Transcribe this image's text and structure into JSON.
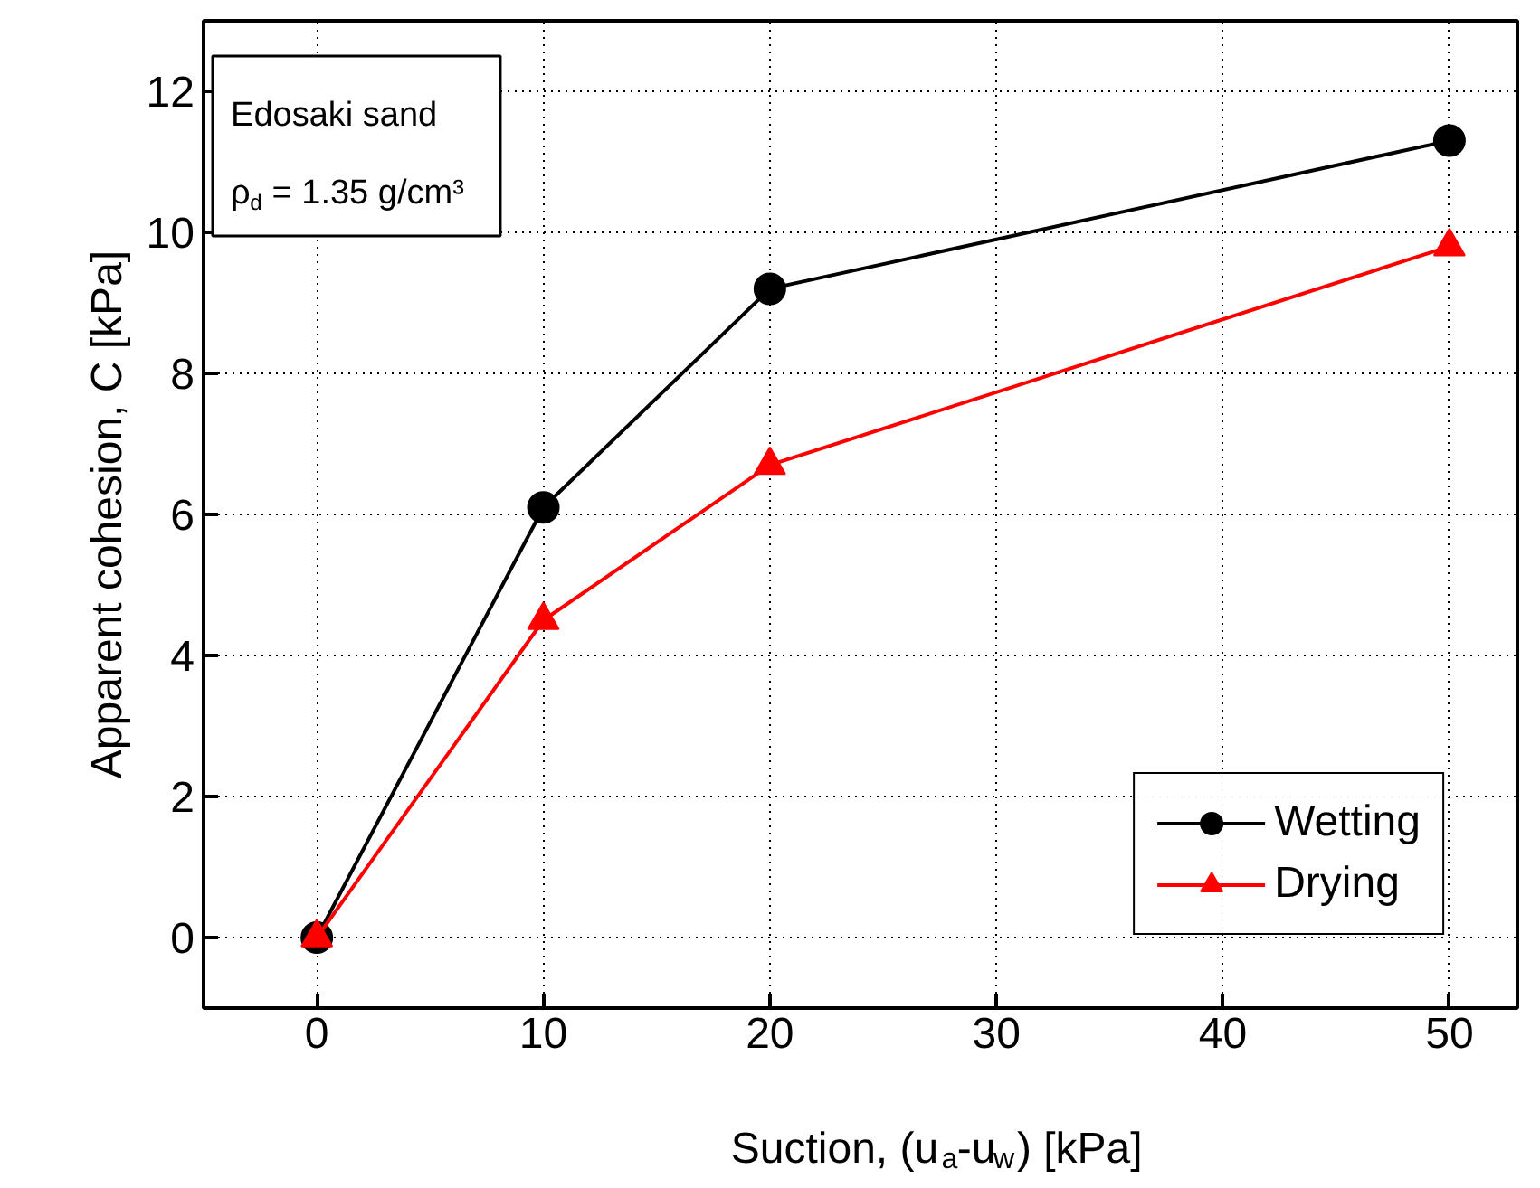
{
  "chart_data": {
    "type": "line",
    "xlabel": "Suction, (u$_{a}$-u$_{w}$) [kPa]",
    "ylabel": "Apparent cohesion, C [kPa]",
    "x": [
      0,
      10,
      20,
      50
    ],
    "series": [
      {
        "name": "Wetting",
        "color": "#000000",
        "marker": "circle",
        "values": [
          0,
          6.1,
          9.2,
          11.3
        ]
      },
      {
        "name": "Drying",
        "color": "#ff0000",
        "marker": "triangle",
        "values": [
          0,
          4.5,
          6.7,
          9.8
        ]
      }
    ],
    "annotations": [
      "Edosaki sand",
      "ρ$_{d}$ = 1.35 g/cm³"
    ],
    "xlim": [
      -5,
      53
    ],
    "ylim": [
      -1,
      13
    ],
    "xticks": [
      0,
      10,
      20,
      30,
      40,
      50
    ],
    "yticks": [
      0,
      2,
      4,
      6,
      8,
      10,
      12
    ],
    "grid": true,
    "legend": "bottom right",
    "line_style": "solid"
  }
}
